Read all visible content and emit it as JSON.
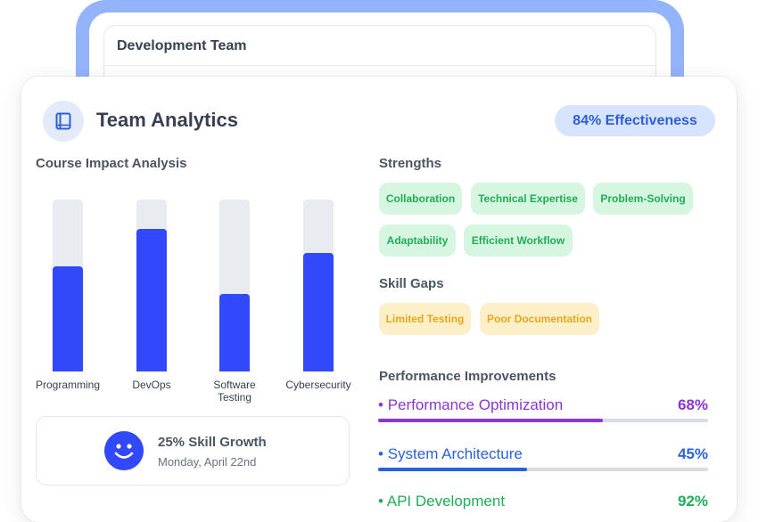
{
  "back_card": {
    "title": "Development Team"
  },
  "header": {
    "title": "Team Analytics",
    "effectiveness": "84% Effectiveness"
  },
  "course_impact": {
    "title": "Course Impact Analysis",
    "bars": [
      {
        "label": "Programming",
        "value": 0.61
      },
      {
        "label": "DevOps",
        "value": 0.83
      },
      {
        "label": "Software Testing",
        "value": 0.45
      },
      {
        "label": "Cybersecurity",
        "value": 0.69
      }
    ]
  },
  "growth": {
    "title": "25% Skill Growth",
    "date": "Monday, April 22nd"
  },
  "strengths": {
    "title": "Strengths",
    "items": [
      "Collaboration",
      "Technical Expertise",
      "Problem-Solving",
      "Adaptability",
      "Efficient Workflow"
    ]
  },
  "skill_gaps": {
    "title": "Skill Gaps",
    "items": [
      "Limited Testing",
      "Poor Documentation"
    ]
  },
  "performance": {
    "title": "Performance Improvements",
    "items": [
      {
        "label": "Performance Optimization",
        "percent": "68%",
        "value": 0.68,
        "color": "#8b35d6"
      },
      {
        "label": "System Architecture",
        "percent": "45%",
        "value": 0.45,
        "color": "#2b62d9"
      },
      {
        "label": "API Development",
        "percent": "92%",
        "value": 0.92,
        "color": "#1fae55"
      }
    ]
  },
  "colors": {
    "accent": "#3248fb",
    "strength_bg": "#d6f6e1",
    "strength_text": "#1fae55",
    "gap_bg": "#fdefc8",
    "gap_text": "#e4a81c"
  },
  "icons": {
    "header": "book-icon",
    "growth": "smiley-icon"
  }
}
